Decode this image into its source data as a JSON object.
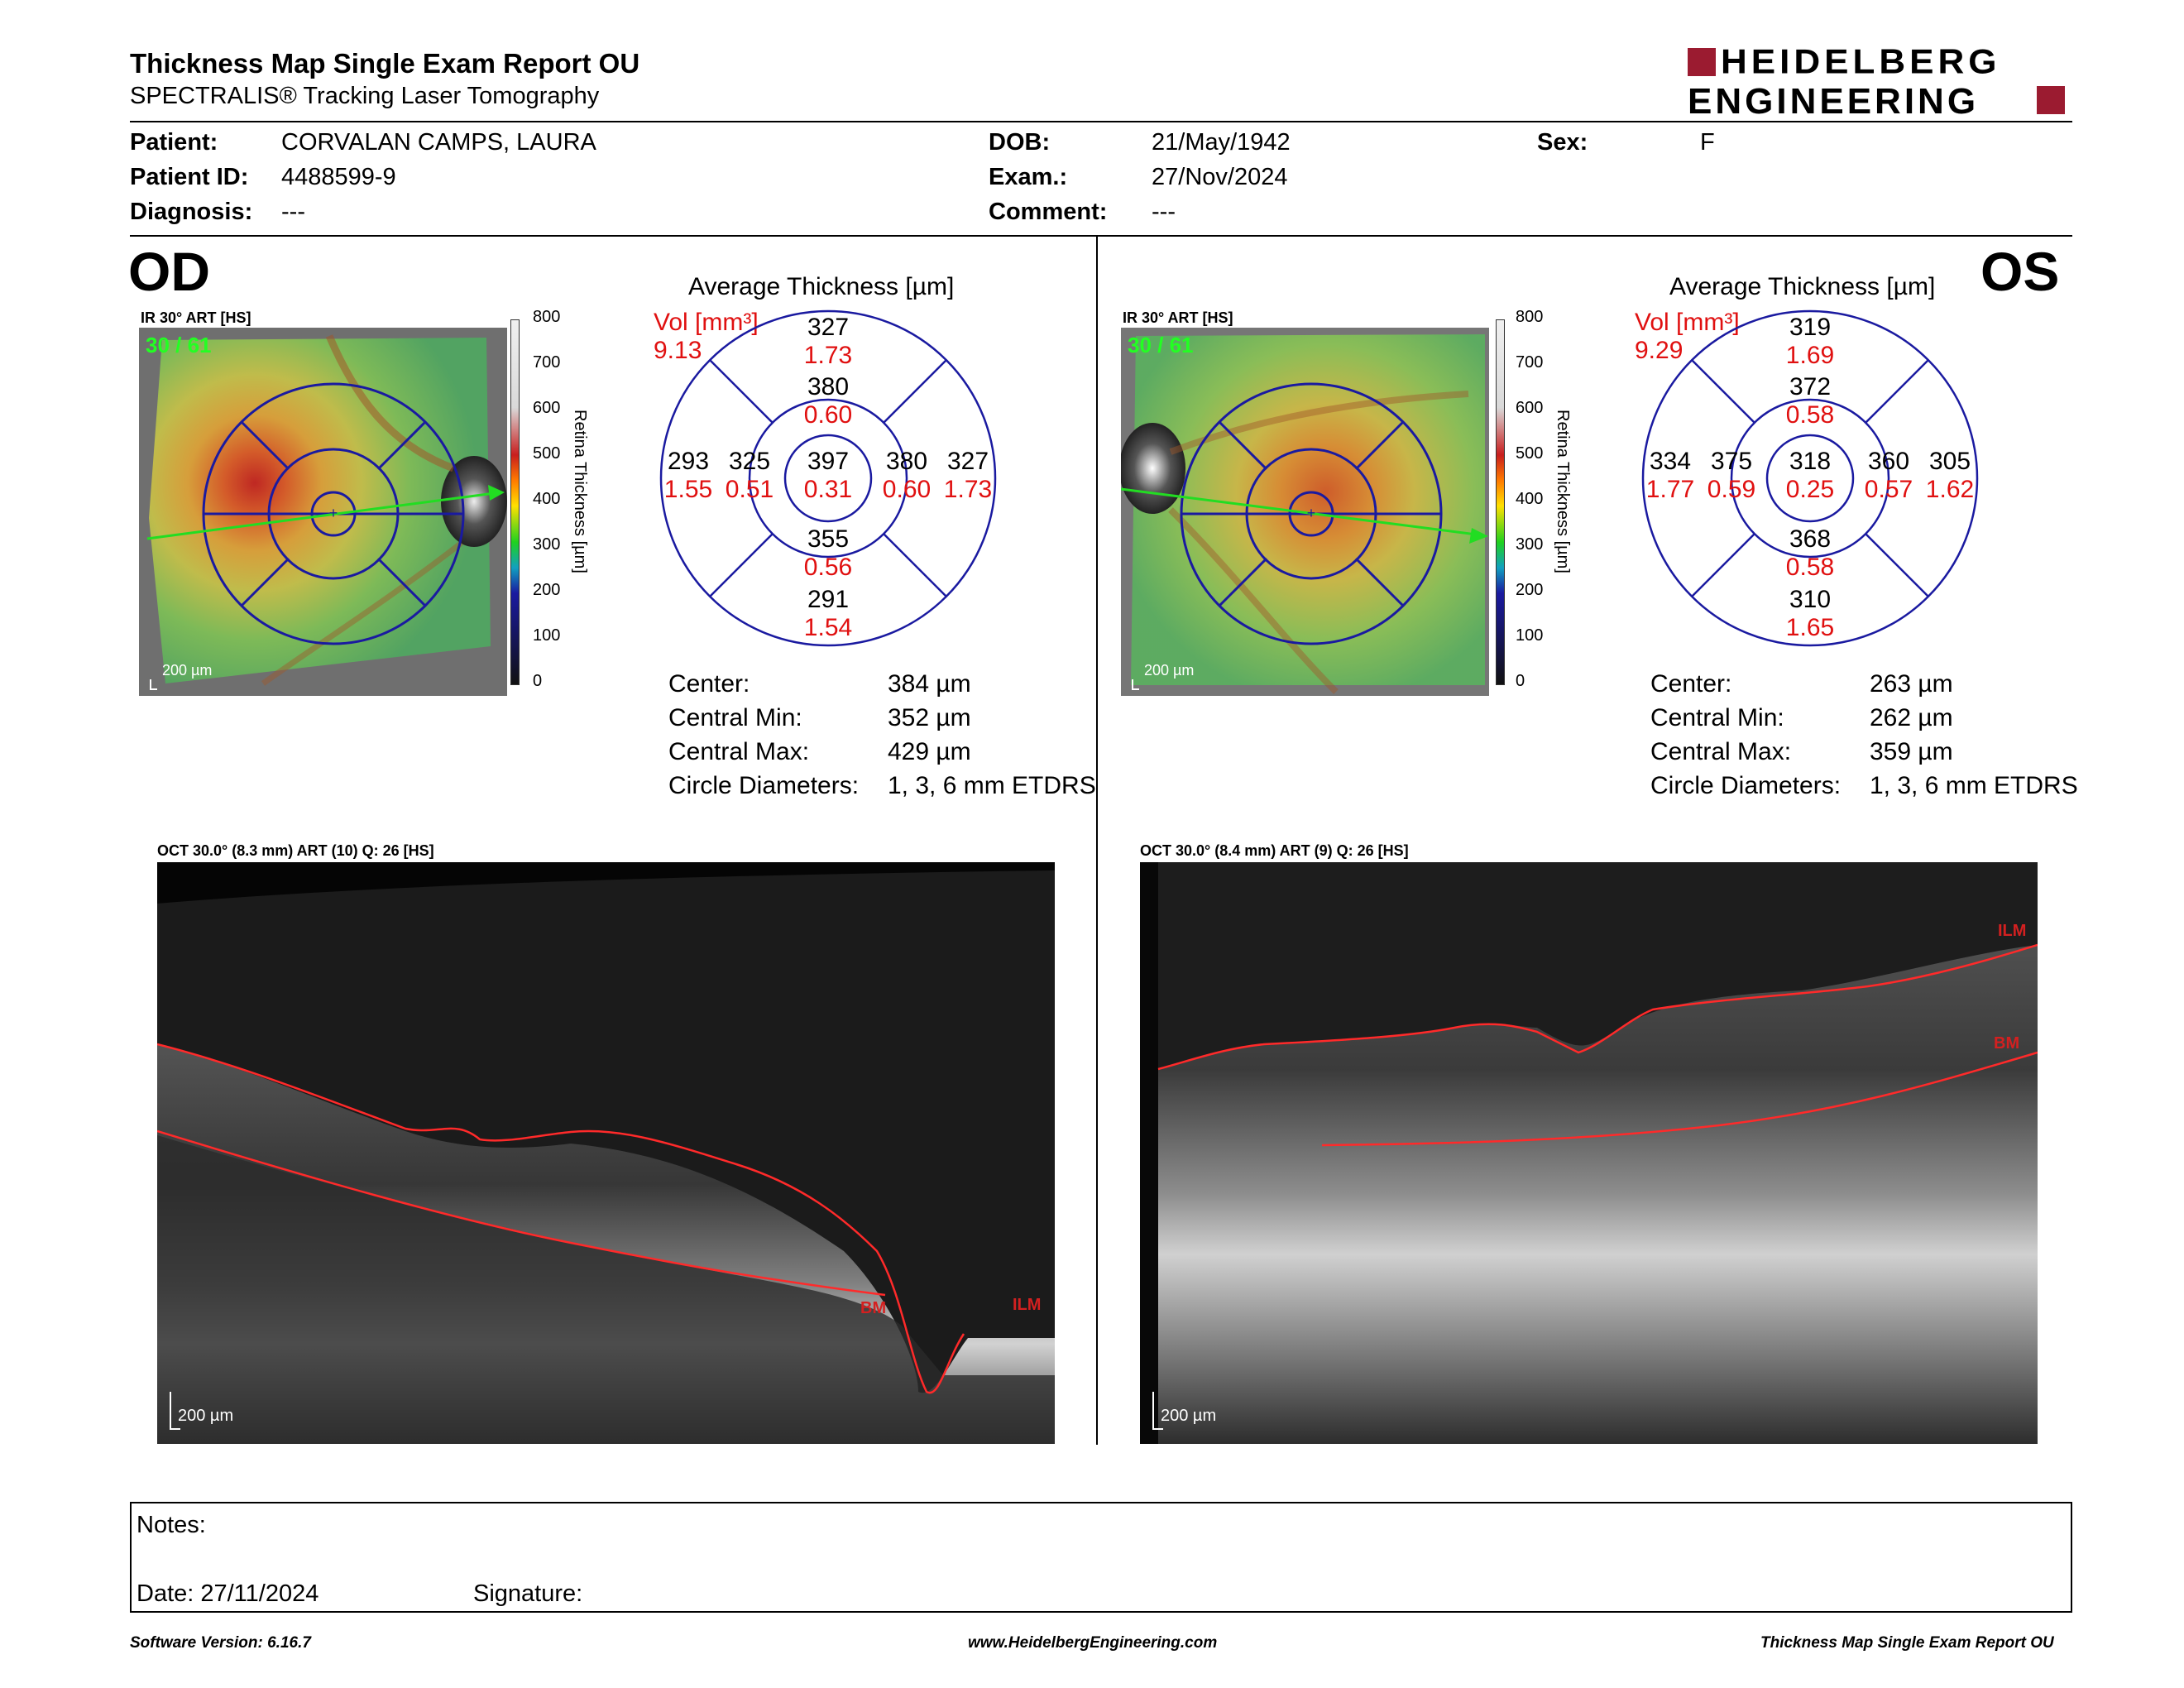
{
  "header": {
    "title": "Thickness Map Single Exam Report OU",
    "subtitle": "SPECTRALIS® Tracking Laser Tomography",
    "logo_line1": "HEIDELBERG",
    "logo_line2": "ENGINEERING"
  },
  "patient": {
    "patient_label": "Patient:",
    "patient_value": "CORVALAN CAMPS, LAURA",
    "id_label": "Patient ID:",
    "id_value": "4488599-9",
    "diagnosis_label": "Diagnosis:",
    "diagnosis_value": "---",
    "dob_label": "DOB:",
    "dob_value": "21/May/1942",
    "exam_label": "Exam.:",
    "exam_value": "27/Nov/2024",
    "comment_label": "Comment:",
    "comment_value": "---",
    "sex_label": "Sex:",
    "sex_value": "F"
  },
  "od": {
    "eye": "OD",
    "ir_label": "IR 30° ART [HS]",
    "frames": "30 / 61",
    "scale_bar": "200 µm",
    "scale_title": "Retina Thickness [µm]",
    "scale_ticks": [
      "800",
      "700",
      "600",
      "500",
      "400",
      "300",
      "200",
      "100",
      "0"
    ],
    "avg_title": "Average Thickness [µm]",
    "vol_label": "Vol [mm³]",
    "vol_value": "9.13",
    "etdrs": {
      "center": {
        "t": "397",
        "v": "0.31"
      },
      "inner_sup": {
        "t": "380",
        "v": "0.60"
      },
      "inner_inf": {
        "t": "355",
        "v": "0.56"
      },
      "inner_left": {
        "t": "325",
        "v": "0.51"
      },
      "inner_right": {
        "t": "380",
        "v": "0.60"
      },
      "outer_sup": {
        "t": "327",
        "v": "1.73"
      },
      "outer_inf": {
        "t": "291",
        "v": "1.54"
      },
      "outer_left": {
        "t": "293",
        "v": "1.55"
      },
      "outer_right": {
        "t": "327",
        "v": "1.73"
      }
    },
    "stats": {
      "center_label": "Center:",
      "center_value": "384 µm",
      "min_label": "Central Min:",
      "min_value": "352 µm",
      "max_label": "Central Max:",
      "max_value": "429 µm",
      "diam_label": "Circle Diameters:",
      "diam_value": "1, 3, 6 mm ETDRS"
    },
    "oct_label": "OCT 30.0° (8.3 mm) ART (10) Q: 26 [HS]",
    "oct_scale": "200 µm",
    "ilm": "ILM",
    "bm": "BM"
  },
  "os": {
    "eye": "OS",
    "ir_label": "IR 30° ART [HS]",
    "frames": "30 / 61",
    "scale_bar": "200 µm",
    "scale_title": "Retina Thickness [µm]",
    "scale_ticks": [
      "800",
      "700",
      "600",
      "500",
      "400",
      "300",
      "200",
      "100",
      "0"
    ],
    "avg_title": "Average Thickness [µm]",
    "vol_label": "Vol [mm³]",
    "vol_value": "9.29",
    "etdrs": {
      "center": {
        "t": "318",
        "v": "0.25"
      },
      "inner_sup": {
        "t": "372",
        "v": "0.58"
      },
      "inner_inf": {
        "t": "368",
        "v": "0.58"
      },
      "inner_left": {
        "t": "375",
        "v": "0.59"
      },
      "inner_right": {
        "t": "360",
        "v": "0.57"
      },
      "outer_sup": {
        "t": "319",
        "v": "1.69"
      },
      "outer_inf": {
        "t": "310",
        "v": "1.65"
      },
      "outer_left": {
        "t": "334",
        "v": "1.77"
      },
      "outer_right": {
        "t": "305",
        "v": "1.62"
      }
    },
    "stats": {
      "center_label": "Center:",
      "center_value": "263 µm",
      "min_label": "Central Min:",
      "min_value": "262 µm",
      "max_label": "Central Max:",
      "max_value": "359 µm",
      "diam_label": "Circle Diameters:",
      "diam_value": "1, 3, 6 mm ETDRS"
    },
    "oct_label": "OCT 30.0° (8.4 mm) ART (9) Q: 26 [HS]",
    "oct_scale": "200 µm",
    "ilm": "ILM",
    "bm": "BM"
  },
  "notes": {
    "notes_label": "Notes:",
    "date_label": "Date: 27/11/2024",
    "signature_label": "Signature:"
  },
  "footer": {
    "software": "Software Version: 6.16.7",
    "website": "www.HeidelbergEngineering.com",
    "report": "Thickness Map Single Exam Report OU"
  },
  "colors": {
    "accent_red": "#e01010",
    "logo_red": "#9b1b30",
    "etdrs_blue": "#1a1aa0",
    "arrow_green": "#22dd22"
  }
}
